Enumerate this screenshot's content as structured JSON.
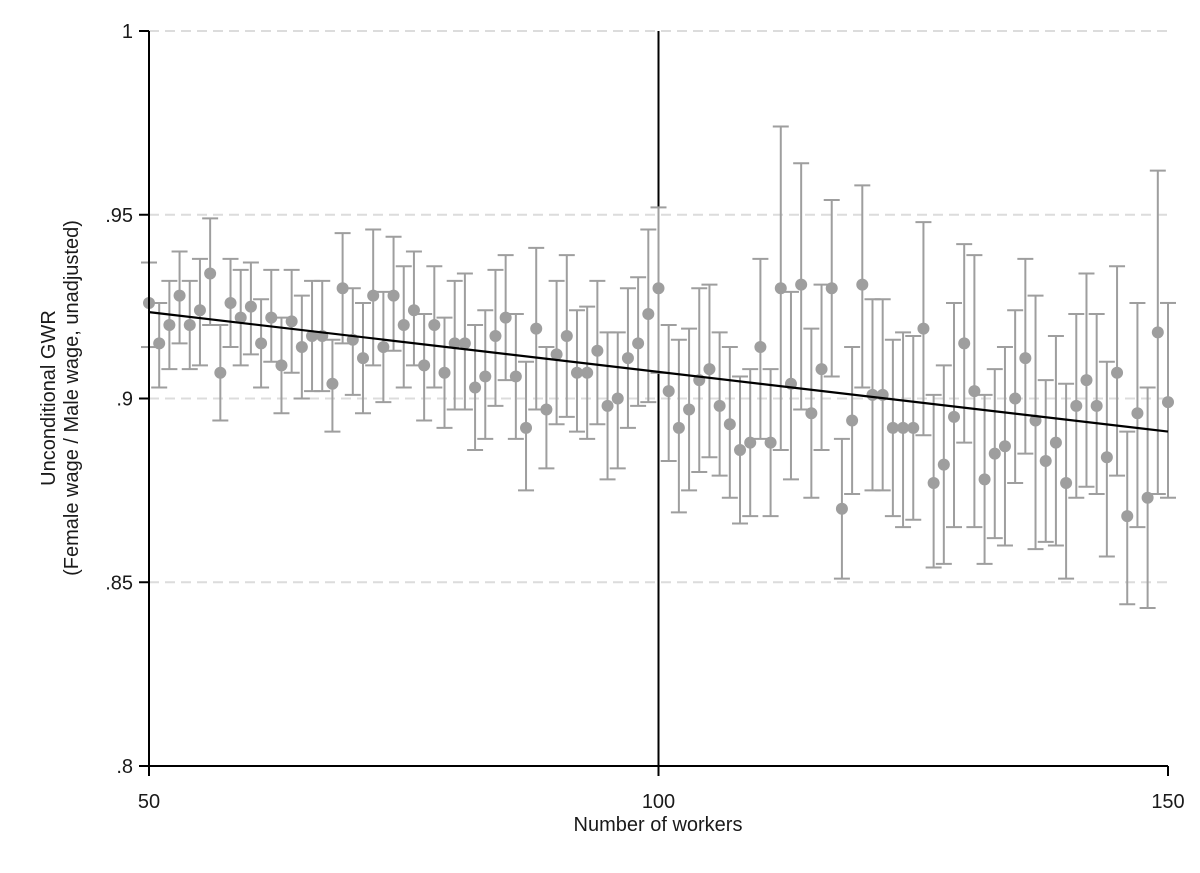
{
  "chart_data": {
    "type": "scatter",
    "xlabel": "Number of workers",
    "ylabel_lines": [
      "Unconditional GWR",
      "(Female wage / Male wage, unadjusted)"
    ],
    "xlim": [
      50,
      150
    ],
    "ylim": [
      0.8,
      1.0
    ],
    "x_ticks": [
      50,
      100,
      150
    ],
    "x_tick_labels": [
      "50",
      "100",
      "150"
    ],
    "y_ticks": [
      0.8,
      0.85,
      0.9,
      0.95,
      1.0
    ],
    "y_tick_labels": [
      ".8",
      ".85",
      ".9",
      ".95",
      "1"
    ],
    "grid": "horizontal dashed",
    "reference_line_x": 100,
    "colors": {
      "points": "#9e9e9e",
      "fit": "#000000",
      "grid": "#dcdcdc",
      "axis": "#000000"
    },
    "fit_line": {
      "x": [
        50,
        150
      ],
      "y": [
        0.9235,
        0.891
      ]
    },
    "series": [
      {
        "x": [
          50,
          51,
          52,
          53,
          54,
          55,
          56,
          57,
          58,
          59,
          60,
          61,
          62,
          63,
          64,
          65,
          66,
          67,
          68,
          69,
          70,
          71,
          72,
          73,
          74,
          75,
          76,
          77,
          78,
          79,
          80,
          81,
          82,
          83,
          84,
          85,
          86,
          87,
          88,
          89,
          90,
          91,
          92,
          93,
          94,
          95,
          96,
          97,
          98,
          99,
          100,
          101,
          102,
          103,
          104,
          105,
          106,
          107,
          108,
          109,
          110,
          111,
          112,
          113,
          114,
          115,
          116,
          117,
          118,
          119,
          120,
          121,
          122,
          123,
          124,
          125,
          126,
          127,
          128,
          129,
          130,
          131,
          132,
          133,
          134,
          135,
          136,
          137,
          138,
          139,
          140,
          141,
          142,
          143,
          144,
          145,
          146,
          147,
          148,
          149,
          150
        ],
        "y": [
          0.926,
          0.915,
          0.92,
          0.928,
          0.92,
          0.924,
          0.934,
          0.907,
          0.926,
          0.922,
          0.925,
          0.915,
          0.922,
          0.909,
          0.921,
          0.914,
          0.917,
          0.917,
          0.904,
          0.93,
          0.916,
          0.911,
          0.928,
          0.914,
          0.928,
          0.92,
          0.924,
          0.909,
          0.92,
          0.907,
          0.915,
          0.915,
          0.903,
          0.906,
          0.917,
          0.922,
          0.906,
          0.892,
          0.919,
          0.897,
          0.912,
          0.917,
          0.907,
          0.907,
          0.913,
          0.898,
          0.9,
          0.911,
          0.915,
          0.923,
          0.93,
          0.902,
          0.892,
          0.897,
          0.905,
          0.908,
          0.898,
          0.893,
          0.886,
          0.888,
          0.914,
          0.888,
          0.93,
          0.904,
          0.931,
          0.896,
          0.908,
          0.93,
          0.87,
          0.894,
          0.931,
          0.901,
          0.901,
          0.892,
          0.892,
          0.892,
          0.919,
          0.877,
          0.882,
          0.895,
          0.915,
          0.902,
          0.878,
          0.885,
          0.887,
          0.9,
          0.911,
          0.894,
          0.883,
          0.888,
          0.877,
          0.898,
          0.905,
          0.898,
          0.884,
          0.907,
          0.868,
          0.896,
          0.873,
          0.918,
          0.899
        ],
        "y_low": [
          0.914,
          0.903,
          0.908,
          0.915,
          0.908,
          0.909,
          0.92,
          0.894,
          0.914,
          0.909,
          0.912,
          0.903,
          0.91,
          0.896,
          0.907,
          0.9,
          0.902,
          0.902,
          0.891,
          0.915,
          0.901,
          0.896,
          0.909,
          0.899,
          0.913,
          0.903,
          0.909,
          0.894,
          0.903,
          0.892,
          0.897,
          0.897,
          0.886,
          0.889,
          0.898,
          0.905,
          0.889,
          0.875,
          0.897,
          0.881,
          0.893,
          0.895,
          0.891,
          0.889,
          0.893,
          0.878,
          0.881,
          0.892,
          0.898,
          0.899,
          0.907,
          0.883,
          0.869,
          0.875,
          0.88,
          0.884,
          0.879,
          0.873,
          0.866,
          0.868,
          0.889,
          0.868,
          0.886,
          0.878,
          0.897,
          0.873,
          0.886,
          0.906,
          0.851,
          0.874,
          0.903,
          0.875,
          0.875,
          0.868,
          0.865,
          0.867,
          0.89,
          0.854,
          0.855,
          0.865,
          0.888,
          0.865,
          0.855,
          0.862,
          0.86,
          0.877,
          0.885,
          0.859,
          0.861,
          0.86,
          0.851,
          0.873,
          0.876,
          0.874,
          0.857,
          0.879,
          0.844,
          0.865,
          0.843,
          0.874,
          0.873
        ],
        "y_high": [
          0.937,
          0.926,
          0.932,
          0.94,
          0.932,
          0.938,
          0.949,
          0.92,
          0.938,
          0.935,
          0.937,
          0.927,
          0.935,
          0.922,
          0.935,
          0.928,
          0.932,
          0.932,
          0.916,
          0.945,
          0.93,
          0.926,
          0.946,
          0.929,
          0.944,
          0.936,
          0.94,
          0.923,
          0.936,
          0.922,
          0.932,
          0.934,
          0.92,
          0.924,
          0.935,
          0.939,
          0.923,
          0.91,
          0.941,
          0.914,
          0.932,
          0.939,
          0.924,
          0.925,
          0.932,
          0.918,
          0.918,
          0.93,
          0.933,
          0.946,
          0.952,
          0.92,
          0.916,
          0.919,
          0.93,
          0.931,
          0.918,
          0.914,
          0.906,
          0.908,
          0.938,
          0.908,
          0.974,
          0.929,
          0.964,
          0.919,
          0.931,
          0.954,
          0.889,
          0.914,
          0.958,
          0.927,
          0.927,
          0.916,
          0.918,
          0.917,
          0.948,
          0.901,
          0.909,
          0.926,
          0.942,
          0.939,
          0.901,
          0.908,
          0.914,
          0.924,
          0.938,
          0.928,
          0.905,
          0.917,
          0.904,
          0.923,
          0.934,
          0.923,
          0.91,
          0.936,
          0.891,
          0.926,
          0.903,
          0.962,
          0.926
        ]
      }
    ]
  }
}
